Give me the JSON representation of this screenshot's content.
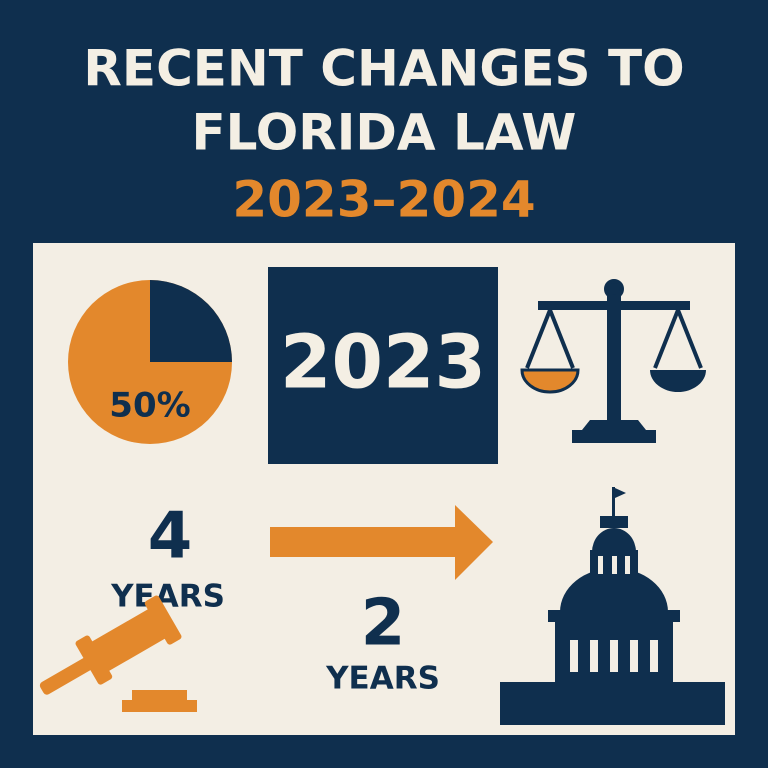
{
  "header": {
    "title_lines": [
      "RECENT CHANGES TO",
      "FLORIDA LAW"
    ],
    "subtitle": "2023–2024"
  },
  "panel": {
    "pie_label": "50%",
    "year_box": "2023",
    "before": {
      "number": "4",
      "unit": "YEARS"
    },
    "after": {
      "number": "2",
      "unit": "YEARS"
    }
  }
}
